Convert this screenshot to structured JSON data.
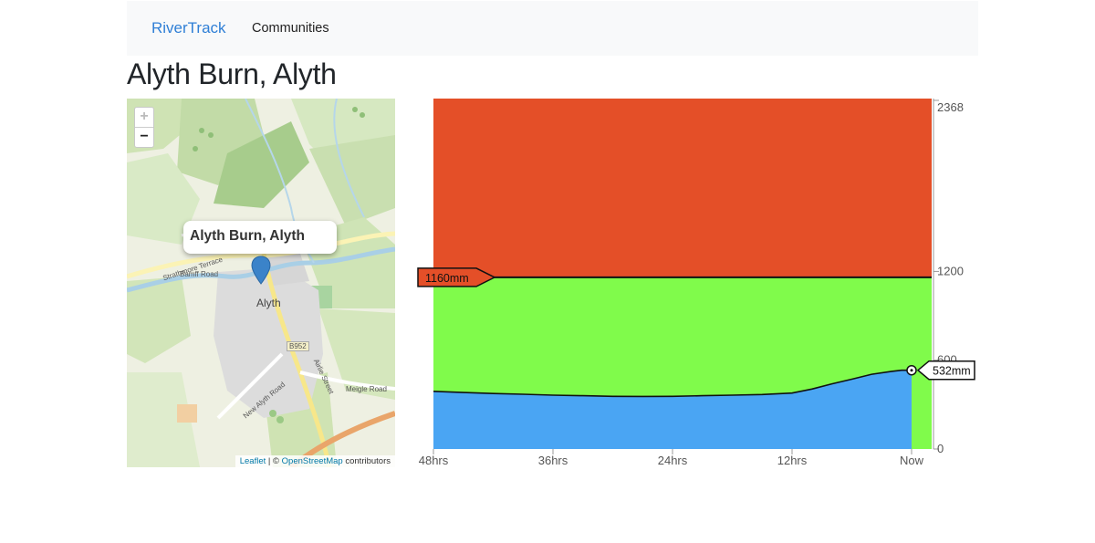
{
  "nav": {
    "brand": "RiverTrack",
    "links": [
      "Communities"
    ]
  },
  "page_title": "Alyth Burn, Alyth",
  "map": {
    "popup_title": "Alyth Burn, Alyth",
    "zoom_in": "+",
    "zoom_out": "−",
    "town_label": "Alyth",
    "road_labels": [
      "Strathmore Terrace",
      "Bamff Road",
      "B952",
      "Airlie Street",
      "New Alyth Road",
      "Meigle Road"
    ],
    "attribution": {
      "leaflet": "Leaflet",
      "separator": " | © ",
      "osm": "OpenStreetMap",
      "suffix": " contributors"
    }
  },
  "chart_data": {
    "type": "area",
    "x_tick_labels": [
      "48hrs",
      "36hrs",
      "24hrs",
      "12hrs",
      "Now"
    ],
    "y_tick_labels": [
      "2368",
      "1200",
      "600",
      "0"
    ],
    "ylim": [
      0,
      2368
    ],
    "zones": [
      {
        "name": "high",
        "from": 1160,
        "to": 2368,
        "color": "#e44f28"
      },
      {
        "name": "normal",
        "from": 0,
        "to": 1160,
        "color": "#80fb4b"
      }
    ],
    "threshold": {
      "value": 1160,
      "label": "1160mm"
    },
    "current": {
      "value": 532,
      "label": "532mm"
    },
    "series": [
      {
        "color": "#4aa5f3",
        "hours_ago": [
          48,
          45,
          42,
          39,
          36,
          33,
          30,
          27,
          24,
          21,
          18,
          15,
          12,
          10,
          8,
          6,
          4,
          2,
          1,
          0
        ],
        "values": [
          390,
          382,
          375,
          370,
          364,
          360,
          356,
          355,
          356,
          360,
          364,
          368,
          378,
          405,
          440,
          472,
          505,
          525,
          532,
          532
        ]
      }
    ]
  }
}
